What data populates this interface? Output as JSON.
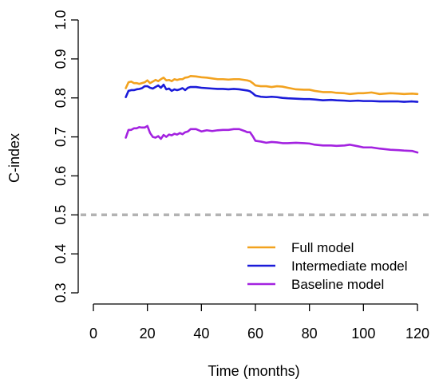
{
  "chart_data": {
    "type": "line",
    "xlabel": "Time (months)",
    "ylabel": "C-index",
    "xlim": [
      0,
      120
    ],
    "ylim": [
      0.3,
      1.0
    ],
    "x_ticks": [
      0,
      20,
      40,
      60,
      80,
      100,
      120
    ],
    "y_ticks": [
      0.3,
      0.4,
      0.5,
      0.6,
      0.7,
      0.8,
      0.9,
      1.0
    ],
    "x_tick_labels": [
      "0",
      "20",
      "40",
      "60",
      "80",
      "100",
      "120"
    ],
    "y_tick_labels": [
      "0.3",
      "0.4",
      "0.5",
      "0.6",
      "0.7",
      "0.8",
      "0.9",
      "1.0"
    ],
    "grid": false,
    "legend_position": "bottom-right",
    "reference_lines": [
      {
        "y": 0.5,
        "style": "dashed",
        "color": "#b3b3b3"
      }
    ],
    "series": [
      {
        "name": "Full model",
        "color": "#f2a21f",
        "x": [
          12,
          13,
          14,
          15,
          16,
          17,
          18,
          19,
          20,
          21,
          22,
          23,
          24,
          25,
          26,
          27,
          28,
          29,
          30,
          31,
          32,
          33,
          34,
          35,
          36,
          38,
          40,
          42,
          44,
          46,
          48,
          50,
          52,
          54,
          56,
          57,
          58,
          59,
          60,
          62,
          64,
          66,
          68,
          70,
          72,
          75,
          78,
          80,
          82,
          85,
          88,
          90,
          93,
          95,
          98,
          100,
          103,
          106,
          110,
          113,
          115,
          118,
          120
        ],
        "y": [
          0.825,
          0.84,
          0.842,
          0.838,
          0.838,
          0.836,
          0.838,
          0.84,
          0.845,
          0.838,
          0.842,
          0.846,
          0.843,
          0.848,
          0.852,
          0.845,
          0.846,
          0.843,
          0.848,
          0.846,
          0.848,
          0.848,
          0.852,
          0.853,
          0.856,
          0.855,
          0.853,
          0.852,
          0.85,
          0.848,
          0.848,
          0.847,
          0.848,
          0.848,
          0.846,
          0.845,
          0.843,
          0.838,
          0.832,
          0.83,
          0.83,
          0.828,
          0.83,
          0.829,
          0.826,
          0.822,
          0.821,
          0.821,
          0.818,
          0.815,
          0.815,
          0.813,
          0.812,
          0.81,
          0.812,
          0.812,
          0.814,
          0.81,
          0.812,
          0.811,
          0.81,
          0.811,
          0.81
        ]
      },
      {
        "name": "Intermediate model",
        "color": "#1b1bd9",
        "x": [
          12,
          13,
          14,
          15,
          16,
          17,
          18,
          19,
          20,
          21,
          22,
          23,
          24,
          25,
          26,
          27,
          28,
          29,
          30,
          31,
          32,
          33,
          34,
          35,
          36,
          38,
          40,
          42,
          44,
          46,
          48,
          50,
          52,
          54,
          56,
          57,
          58,
          59,
          60,
          62,
          64,
          66,
          68,
          70,
          72,
          75,
          78,
          80,
          82,
          85,
          88,
          90,
          93,
          95,
          98,
          100,
          103,
          106,
          110,
          113,
          115,
          118,
          120
        ],
        "y": [
          0.802,
          0.818,
          0.82,
          0.82,
          0.822,
          0.823,
          0.825,
          0.83,
          0.83,
          0.826,
          0.824,
          0.828,
          0.832,
          0.826,
          0.834,
          0.822,
          0.824,
          0.818,
          0.822,
          0.82,
          0.822,
          0.825,
          0.82,
          0.826,
          0.828,
          0.828,
          0.826,
          0.825,
          0.824,
          0.823,
          0.823,
          0.822,
          0.823,
          0.822,
          0.82,
          0.819,
          0.817,
          0.812,
          0.806,
          0.803,
          0.802,
          0.803,
          0.802,
          0.8,
          0.799,
          0.798,
          0.797,
          0.797,
          0.796,
          0.794,
          0.795,
          0.794,
          0.793,
          0.792,
          0.793,
          0.792,
          0.792,
          0.791,
          0.791,
          0.791,
          0.79,
          0.791,
          0.79
        ]
      },
      {
        "name": "Baseline model",
        "color": "#a322e0",
        "x": [
          12,
          13,
          14,
          15,
          16,
          17,
          18,
          19,
          20,
          21,
          22,
          23,
          24,
          25,
          26,
          27,
          28,
          29,
          30,
          31,
          32,
          33,
          34,
          35,
          36,
          38,
          40,
          42,
          44,
          46,
          48,
          50,
          52,
          54,
          56,
          57,
          58,
          59,
          60,
          62,
          64,
          66,
          68,
          70,
          72,
          75,
          78,
          80,
          82,
          85,
          88,
          90,
          93,
          95,
          98,
          100,
          103,
          106,
          110,
          113,
          115,
          118,
          120
        ],
        "y": [
          0.698,
          0.718,
          0.718,
          0.722,
          0.722,
          0.725,
          0.724,
          0.724,
          0.728,
          0.71,
          0.7,
          0.698,
          0.702,
          0.695,
          0.705,
          0.7,
          0.706,
          0.704,
          0.708,
          0.706,
          0.71,
          0.707,
          0.712,
          0.714,
          0.72,
          0.72,
          0.714,
          0.717,
          0.715,
          0.717,
          0.718,
          0.718,
          0.72,
          0.72,
          0.715,
          0.712,
          0.712,
          0.702,
          0.69,
          0.688,
          0.685,
          0.687,
          0.686,
          0.684,
          0.684,
          0.685,
          0.684,
          0.683,
          0.68,
          0.678,
          0.678,
          0.677,
          0.678,
          0.68,
          0.676,
          0.673,
          0.673,
          0.67,
          0.667,
          0.666,
          0.665,
          0.664,
          0.66
        ]
      }
    ]
  }
}
